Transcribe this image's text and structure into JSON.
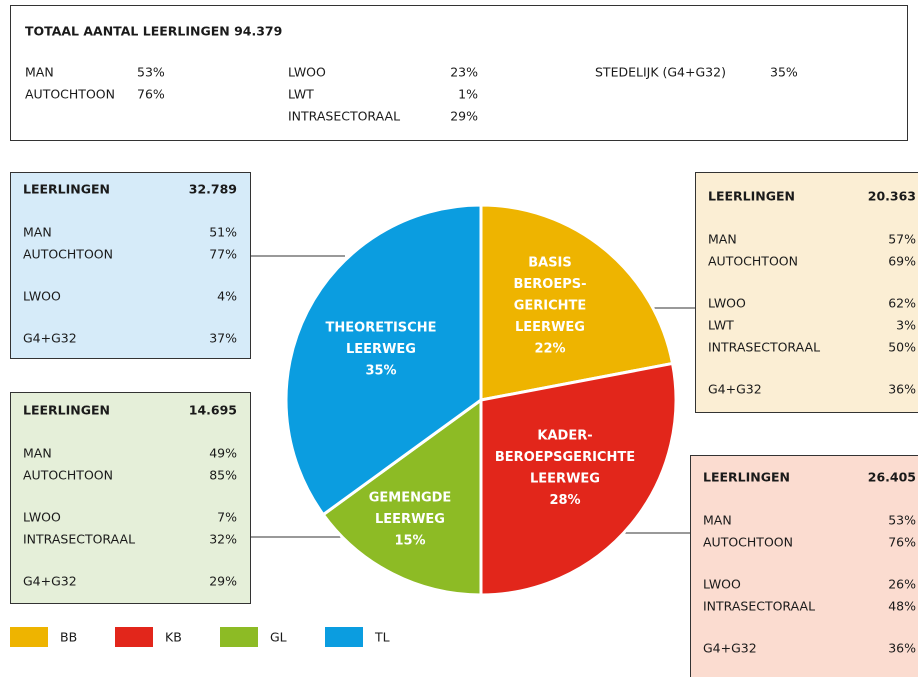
{
  "summary": {
    "title": "TOTAAL AANTAL LEERLINGEN 94.379",
    "columns": [
      [
        [
          "MAN",
          "53%"
        ],
        [
          "AUTOCHTOON",
          "76%"
        ]
      ],
      [
        [
          "LWOO",
          "23%"
        ],
        [
          "LWT",
          "1%"
        ],
        [
          "INTRASECTORAAL",
          "29%"
        ]
      ],
      [
        [
          "STEDELIJK (G4+G32)",
          "35%"
        ]
      ]
    ]
  },
  "panels": [
    {
      "header": [
        "LEERLINGEN",
        "32.789"
      ],
      "groups": [
        [
          [
            "MAN",
            "51%"
          ],
          [
            "AUTOCHTOON",
            "77%"
          ]
        ],
        [
          [
            "LWOO",
            "4%"
          ]
        ],
        [
          [
            "G4+G32",
            "37%"
          ]
        ]
      ]
    },
    {
      "header": [
        "LEERLINGEN",
        "14.695"
      ],
      "groups": [
        [
          [
            "MAN",
            "49%"
          ],
          [
            "AUTOCHTOON",
            "85%"
          ]
        ],
        [
          [
            "LWOO",
            "7%"
          ],
          [
            "INTRASECTORAAL",
            "32%"
          ]
        ],
        [
          [
            "G4+G32",
            "29%"
          ]
        ]
      ]
    },
    {
      "header": [
        "LEERLINGEN",
        "20.363"
      ],
      "groups": [
        [
          [
            "MAN",
            "57%"
          ],
          [
            "AUTOCHTOON",
            "69%"
          ]
        ],
        [
          [
            "LWOO",
            "62%"
          ],
          [
            "LWT",
            "3%"
          ],
          [
            "INTRASECTORAAL",
            "50%"
          ]
        ],
        [
          [
            "G4+G32",
            "36%"
          ]
        ]
      ]
    },
    {
      "header": [
        "LEERLINGEN",
        "26.405"
      ],
      "groups": [
        [
          [
            "MAN",
            "53%"
          ],
          [
            "AUTOCHTOON",
            "76%"
          ]
        ],
        [
          [
            "LWOO",
            "26%"
          ],
          [
            "INTRASECTORAAL",
            "48%"
          ]
        ],
        [
          [
            "G4+G32",
            "36%"
          ]
        ]
      ]
    }
  ],
  "chart_data": {
    "type": "pie",
    "categories": [
      "BB",
      "KB",
      "GL",
      "TL"
    ],
    "slice_labels": [
      [
        "BASIS",
        "BEROEPS-",
        "GERICHTE",
        "LEERWEG"
      ],
      [
        "KADER-",
        "BEROEPSGERICHTE",
        "LEERWEG"
      ],
      [
        "GEMENGDE",
        "LEERWEG"
      ],
      [
        "THEORETISCHE",
        "LEERWEG"
      ]
    ],
    "values": [
      22,
      28,
      15,
      35
    ],
    "value_labels": [
      "22%",
      "28%",
      "15%",
      "35%"
    ],
    "colors": [
      "#eeb400",
      "#e2261b",
      "#8dbb25",
      "#0b9de0"
    ]
  }
}
